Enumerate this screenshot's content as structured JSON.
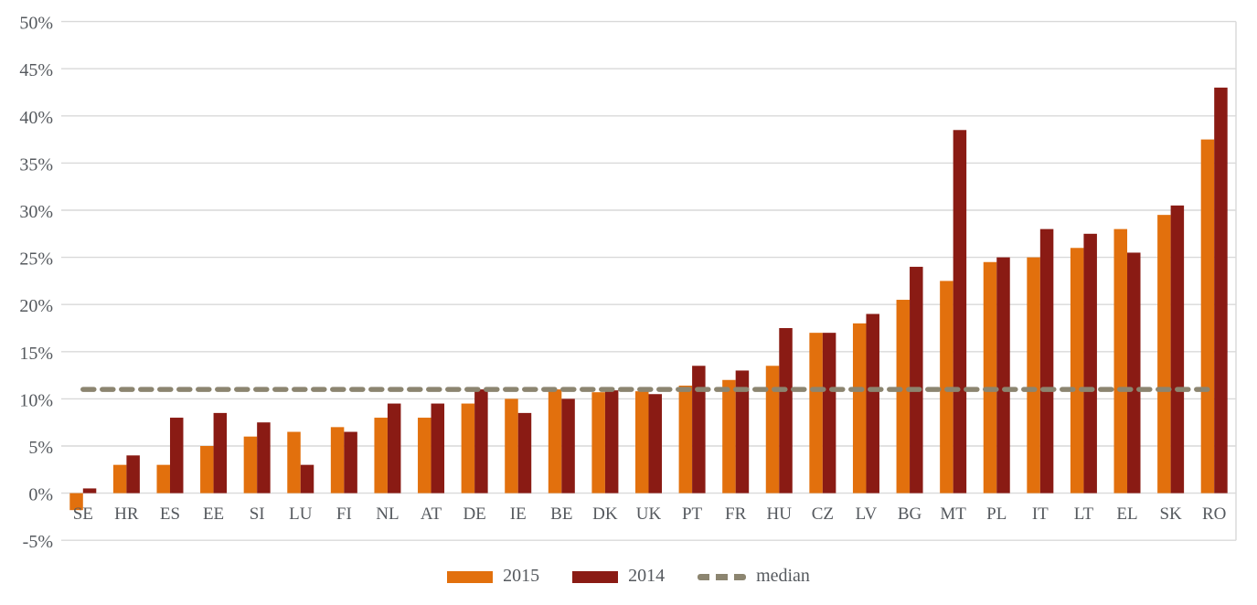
{
  "chart_data": {
    "type": "bar",
    "title": "",
    "xlabel": "",
    "ylabel": "",
    "categories": [
      "SE",
      "HR",
      "ES",
      "EE",
      "SI",
      "LU",
      "FI",
      "NL",
      "AT",
      "DE",
      "IE",
      "BE",
      "DK",
      "UK",
      "PT",
      "FR",
      "HU",
      "CZ",
      "LV",
      "BG",
      "MT",
      "PL",
      "IT",
      "LT",
      "EL",
      "SK",
      "RO"
    ],
    "series": [
      {
        "name": "2015",
        "color": "#E2700D",
        "values": [
          -1.8,
          3,
          3,
          5,
          6,
          6.5,
          7,
          8,
          8,
          9.5,
          10,
          11,
          10.7,
          10.8,
          11.4,
          12,
          13.5,
          17,
          18,
          20.5,
          22.5,
          24.5,
          25,
          26,
          28,
          29.5,
          37.5
        ]
      },
      {
        "name": "2014",
        "color": "#8A1B14",
        "values": [
          0.5,
          4,
          8,
          8.5,
          7.5,
          3,
          6.5,
          9.5,
          9.5,
          11,
          8.5,
          10,
          10.9,
          10.5,
          13.5,
          13,
          17.5,
          17,
          19,
          24,
          38.5,
          25,
          28,
          27.5,
          25.5,
          30.5,
          43
        ]
      }
    ],
    "median": {
      "label": "median",
      "value": 11,
      "color": "#8C8570"
    },
    "ylim": [
      -5,
      50
    ],
    "ytick_step": 5,
    "ytick_labels": [
      "50%",
      "45%",
      "40%",
      "35%",
      "30%",
      "25%",
      "20%",
      "15%",
      "10%",
      "5%",
      "0%",
      "-5%"
    ],
    "grid": true,
    "legend_position": "bottom",
    "colors": {
      "gridline": "#D9D9D9",
      "plot_border": "#D9D9D9",
      "axis_text": "#55595E",
      "background": "#FFFFFF"
    }
  }
}
